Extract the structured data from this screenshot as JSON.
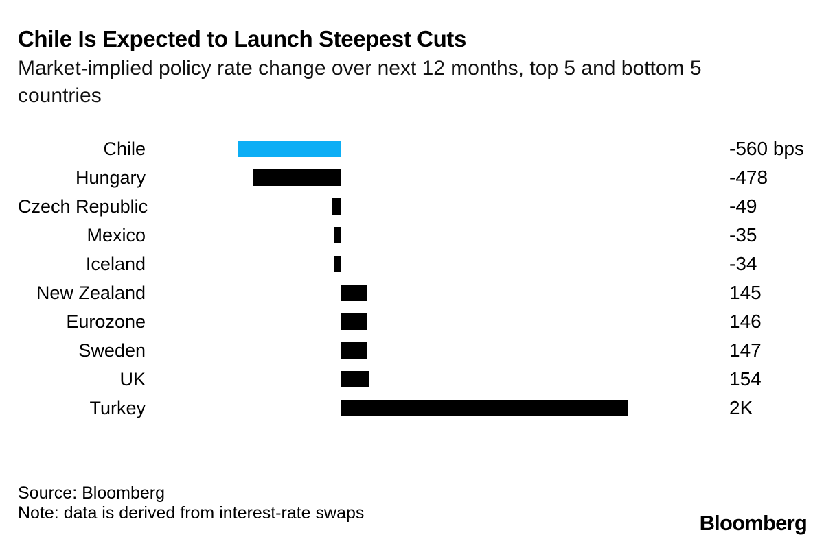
{
  "title": "Chile Is Expected to Launch Steepest Cuts",
  "subtitle_lines": [
    "Market-implied policy rate change over next 12 months, top 5 and bottom 5",
    "countries"
  ],
  "source": "Source: Bloomberg",
  "note": "Note: data is derived from interest-rate swaps",
  "brand": "Bloomberg",
  "colors": {
    "highlight": "#0caef5",
    "bar": "#000000",
    "text": "#000000",
    "background": "#ffffff"
  },
  "chart_data": {
    "type": "bar",
    "orientation": "horizontal",
    "title": "Chile Is Expected to Launch Steepest Cuts",
    "subtitle": "Market-implied policy rate change over next 12 months, top 5 and bottom 5 countries",
    "xlabel": "",
    "ylabel": "",
    "unit": "bps",
    "categories": [
      "Chile",
      "Hungary",
      "Czech Republic",
      "Mexico",
      "Iceland",
      "New Zealand",
      "Eurozone",
      "Sweden",
      "UK",
      "Turkey"
    ],
    "values_bps": [
      -560,
      -478,
      -49,
      -35,
      -34,
      145,
      146,
      147,
      154,
      2000
    ],
    "value_labels": [
      "-560 bps",
      "-478",
      "-49",
      "-35",
      "-34",
      "145",
      "146",
      "147",
      "154",
      "2K"
    ],
    "highlight_category": "Chile",
    "xlim_bps": [
      -560,
      1560
    ],
    "clipped_categories": [
      "Turkey"
    ],
    "grid": false,
    "legend": "none"
  }
}
